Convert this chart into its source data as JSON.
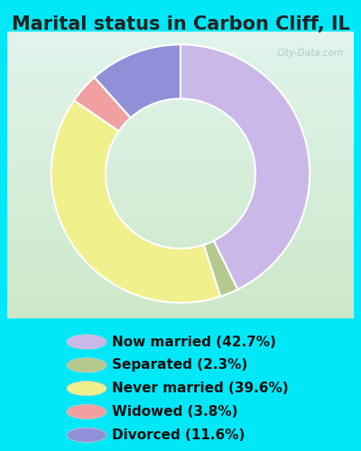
{
  "title": "Marital status in Carbon Cliff, IL",
  "slices": [
    {
      "label": "Now married (42.7%)",
      "value": 42.7,
      "color": "#c9b8e8"
    },
    {
      "label": "Separated (2.3%)",
      "value": 2.3,
      "color": "#b5c98e"
    },
    {
      "label": "Never married (39.6%)",
      "value": 39.6,
      "color": "#f0f08c"
    },
    {
      "label": "Widowed (3.8%)",
      "value": 3.8,
      "color": "#f0a0a0"
    },
    {
      "label": "Divorced (11.6%)",
      "value": 11.6,
      "color": "#9090d8"
    }
  ],
  "outer_bg": "#00e8f8",
  "chart_box_bg_topleft": "#d8f0e8",
  "chart_box_bg_topright": "#e8f4f0",
  "chart_box_bg_bottom": "#d4eecc",
  "title_fontsize": 15,
  "legend_fontsize": 11,
  "watermark": "City-Data.com",
  "title_color": "#222222",
  "legend_text_color": "#111111"
}
